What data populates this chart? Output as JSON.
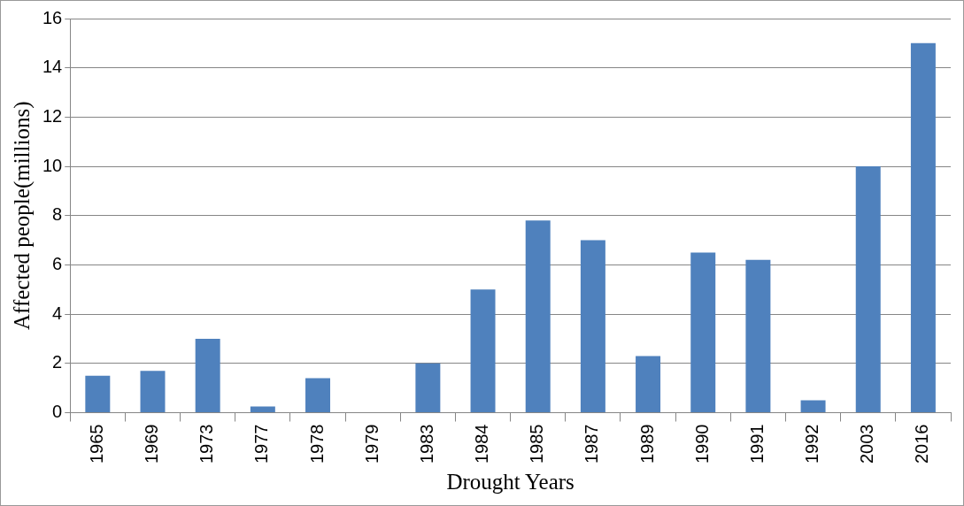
{
  "chart_data": {
    "type": "bar",
    "xlabel": "Drought Years",
    "ylabel": "Affected people(millions)",
    "categories": [
      "1965",
      "1969",
      "1973",
      "1977",
      "1978",
      "1979",
      "1983",
      "1984",
      "1985",
      "1987",
      "1989",
      "1990",
      "1991",
      "1992",
      "2003",
      "2016"
    ],
    "values": [
      1.5,
      1.7,
      3.0,
      0.25,
      1.4,
      0,
      2.0,
      5.0,
      7.8,
      7.0,
      2.3,
      6.5,
      6.2,
      0.5,
      10,
      15
    ],
    "color": "#4f81bd",
    "ylim": [
      0,
      16
    ],
    "yticks": [
      0,
      2,
      4,
      6,
      8,
      10,
      12,
      14,
      16
    ],
    "grid": "y",
    "legend": false
  }
}
